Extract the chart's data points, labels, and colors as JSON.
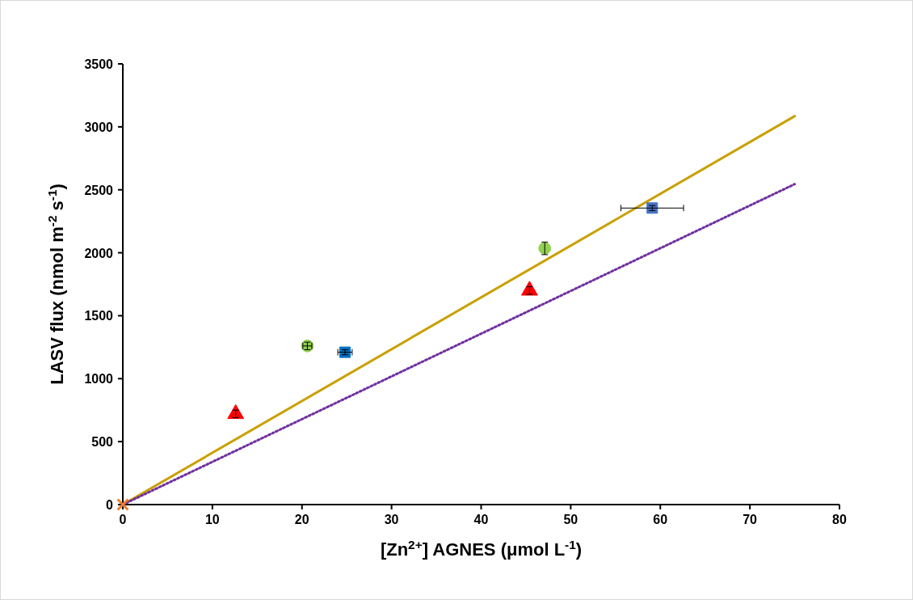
{
  "chart_data": {
    "type": "scatter",
    "xlabel": "[Zn$^{2+}$] AGNES  (μmol L$^{-1}$)",
    "ylabel": "LASV flux  (nmol m$^{-2}$ s$^{-1}$)",
    "xlim": [
      0,
      80
    ],
    "xticks": [
      0,
      10,
      20,
      30,
      40,
      50,
      60,
      70,
      80
    ],
    "ylim": [
      0,
      3500
    ],
    "yticks": [
      0,
      500,
      1000,
      1500,
      2000,
      2500,
      3000,
      3500
    ],
    "grid": false,
    "series": [
      {
        "type": "line",
        "color": "#c9a000",
        "line_style": "solid",
        "x": [
          0,
          75
        ],
        "values": [
          0,
          3085
        ]
      },
      {
        "type": "line",
        "color": "#7030a0",
        "line_style": "dotted",
        "x": [
          0,
          75
        ],
        "values": [
          0,
          2545
        ]
      },
      {
        "type": "scatter",
        "color": "#ed7d31",
        "marker": "cross",
        "x": [
          0
        ],
        "values": [
          0
        ]
      },
      {
        "type": "scatter",
        "color": "#ff0000",
        "marker": "triangle",
        "x": [
          12.6
        ],
        "values": [
          720
        ],
        "errors": [
          30
        ]
      },
      {
        "type": "scatter",
        "color": "#92d050",
        "marker": "circle",
        "x": [
          20.6
        ],
        "values": [
          1260
        ],
        "errors": [
          30
        ],
        "xerrors": [
          0.5
        ]
      },
      {
        "type": "scatter",
        "color": "#0070c0",
        "marker": "square",
        "x": [
          24.8
        ],
        "values": [
          1210
        ],
        "errors": [
          20
        ],
        "xerrors": [
          0.8
        ]
      },
      {
        "type": "scatter",
        "color": "#ff0000",
        "marker": "triangle",
        "x": [
          45.4
        ],
        "values": [
          1700
        ],
        "errors": [
          30
        ]
      },
      {
        "type": "scatter",
        "color": "#92d050",
        "marker": "circle",
        "x": [
          47.1
        ],
        "values": [
          2035
        ],
        "errors": [
          50
        ]
      },
      {
        "type": "scatter",
        "color": "#4472c4",
        "marker": "square",
        "x": [
          59.1
        ],
        "values": [
          2355
        ],
        "errors": [
          20
        ],
        "xerrors": [
          3.5
        ]
      }
    ]
  }
}
